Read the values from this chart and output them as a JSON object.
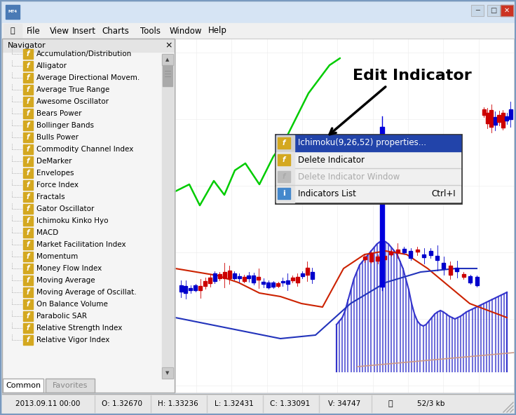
{
  "window_bg": "#c0d0e0",
  "titlebar_bg": "#4a7ab5",
  "menubar_bg": "#f0f0f0",
  "menubar_items": [
    "File",
    "View",
    "Insert",
    "Charts",
    "Tools",
    "Window",
    "Help"
  ],
  "navigator_title": "Navigator",
  "navigator_items": [
    "Accumulation/Distribution",
    "Alligator",
    "Average Directional Movem.",
    "Average True Range",
    "Awesome Oscillator",
    "Bears Power",
    "Bollinger Bands",
    "Bulls Power",
    "Commodity Channel Index",
    "DeMarker",
    "Envelopes",
    "Force Index",
    "Fractals",
    "Gator Oscillator",
    "Ichimoku Kinko Hyo",
    "MACD",
    "Market Facilitation Index",
    "Momentum",
    "Money Flow Index",
    "Moving Average",
    "Moving Average of Oscillat.",
    "On Balance Volume",
    "Parabolic SAR",
    "Relative Strength Index",
    "Relative Vigor Index"
  ],
  "tabs": [
    "Common",
    "Favorites"
  ],
  "annotation_text": "Edit Indicator",
  "statusbar_items": [
    "2013.09.11 00:00",
    "O: 1.32670",
    "H: 1.33236",
    "L: 1.32431",
    "C: 1.33091",
    "V: 34747",
    "52/3 kb"
  ],
  "chart_bg": "#ffffff",
  "green_line_color": "#00cc00",
  "red_line_color": "#cc2200",
  "blue_line_color": "#0000cc",
  "candle_up_color": "#0000cc",
  "candle_down_color": "#cc0000"
}
